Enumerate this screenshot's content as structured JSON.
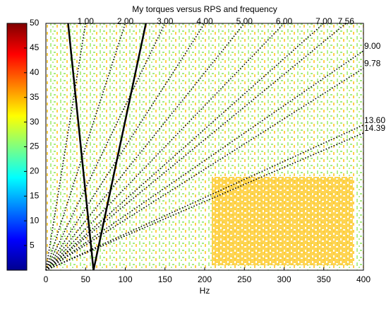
{
  "chart_data": {
    "type": "order-map",
    "title": "My torques versus RPS and frequency",
    "xlabel": "Hz",
    "xlim": [
      0,
      400
    ],
    "xticks": [
      0,
      50,
      100,
      150,
      200,
      250,
      300,
      350,
      400
    ],
    "ylim": [
      0,
      50
    ],
    "yticks": [
      5,
      10,
      15,
      20,
      25,
      30,
      35,
      40,
      45,
      50
    ],
    "orders": [
      {
        "value": 1,
        "label": "1.00"
      },
      {
        "value": 2,
        "label": "2.00"
      },
      {
        "value": 3,
        "label": "3.00"
      },
      {
        "value": 4,
        "label": "4.00"
      },
      {
        "value": 5,
        "label": "5.00"
      },
      {
        "value": 6,
        "label": "6.00"
      },
      {
        "value": 7,
        "label": "7.00"
      },
      {
        "value": 7.56,
        "label": "7.56"
      },
      {
        "value": 9,
        "label": "9.00"
      },
      {
        "value": 9.78,
        "label": "9.78"
      },
      {
        "value": 13.6,
        "label": "13.60"
      },
      {
        "value": 14.39,
        "label": "14.39"
      }
    ],
    "order_color": "#000000",
    "curves": [
      {
        "x": [
          60,
          28
        ],
        "y": [
          0,
          50
        ]
      },
      {
        "x": [
          60,
          126
        ],
        "y": [
          0,
          50
        ]
      }
    ],
    "curve_color": "#000000"
  }
}
